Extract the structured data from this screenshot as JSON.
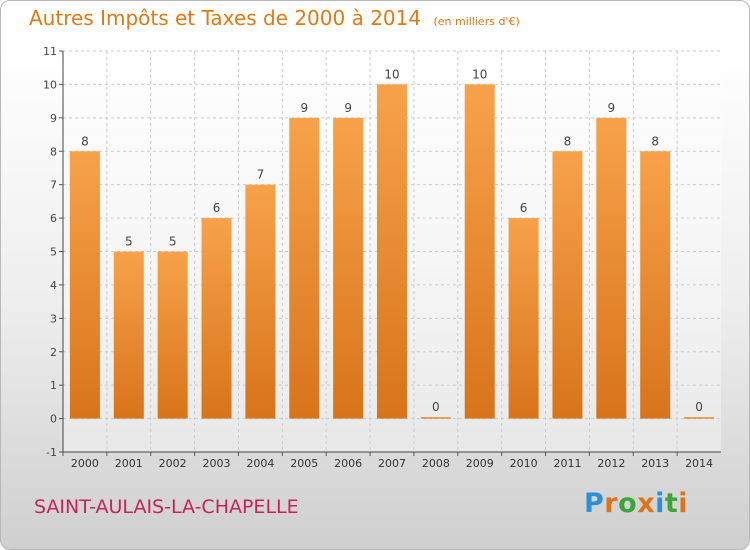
{
  "title": "Autres Impôts et Taxes de 2000 à 2014",
  "subtitle": "(en milliers d'€)",
  "commune": "SAINT-AULAIS-LA-CHAPELLE",
  "logo": {
    "letters": [
      "P",
      "r",
      "o",
      "x",
      "i",
      "t",
      "i"
    ],
    "colors": [
      "#2d8fd6",
      "#e0731a",
      "#3aa63a",
      "#e0731a",
      "#2d8fd6",
      "#3aa63a",
      "#e0731a"
    ]
  },
  "colors": {
    "bar_light": "#f7a24a",
    "bar_dark": "#d8741a",
    "title": "#e07a14",
    "commune": "#c7235b",
    "grid": "#cccccc"
  },
  "chart_data": {
    "type": "bar",
    "categories": [
      "2000",
      "2001",
      "2002",
      "2003",
      "2004",
      "2005",
      "2006",
      "2007",
      "2008",
      "2009",
      "2010",
      "2011",
      "2012",
      "2013",
      "2014"
    ],
    "values": [
      8,
      5,
      5,
      6,
      7,
      9,
      9,
      10,
      0,
      10,
      6,
      8,
      9,
      8,
      0
    ],
    "labels": [
      "8",
      "5",
      "5",
      "6",
      "7",
      "9",
      "9",
      "10",
      "0",
      "10",
      "6",
      "8",
      "9",
      "8",
      "0"
    ],
    "yticks": [
      "-1",
      "0",
      "1",
      "2",
      "3",
      "4",
      "5",
      "6",
      "7",
      "8",
      "9",
      "10",
      "11"
    ],
    "ylim": [
      -1,
      11
    ],
    "grid": true,
    "title": "Autres Impôts et Taxes de 2000 à 2014",
    "xlabel": "",
    "ylabel": ""
  }
}
